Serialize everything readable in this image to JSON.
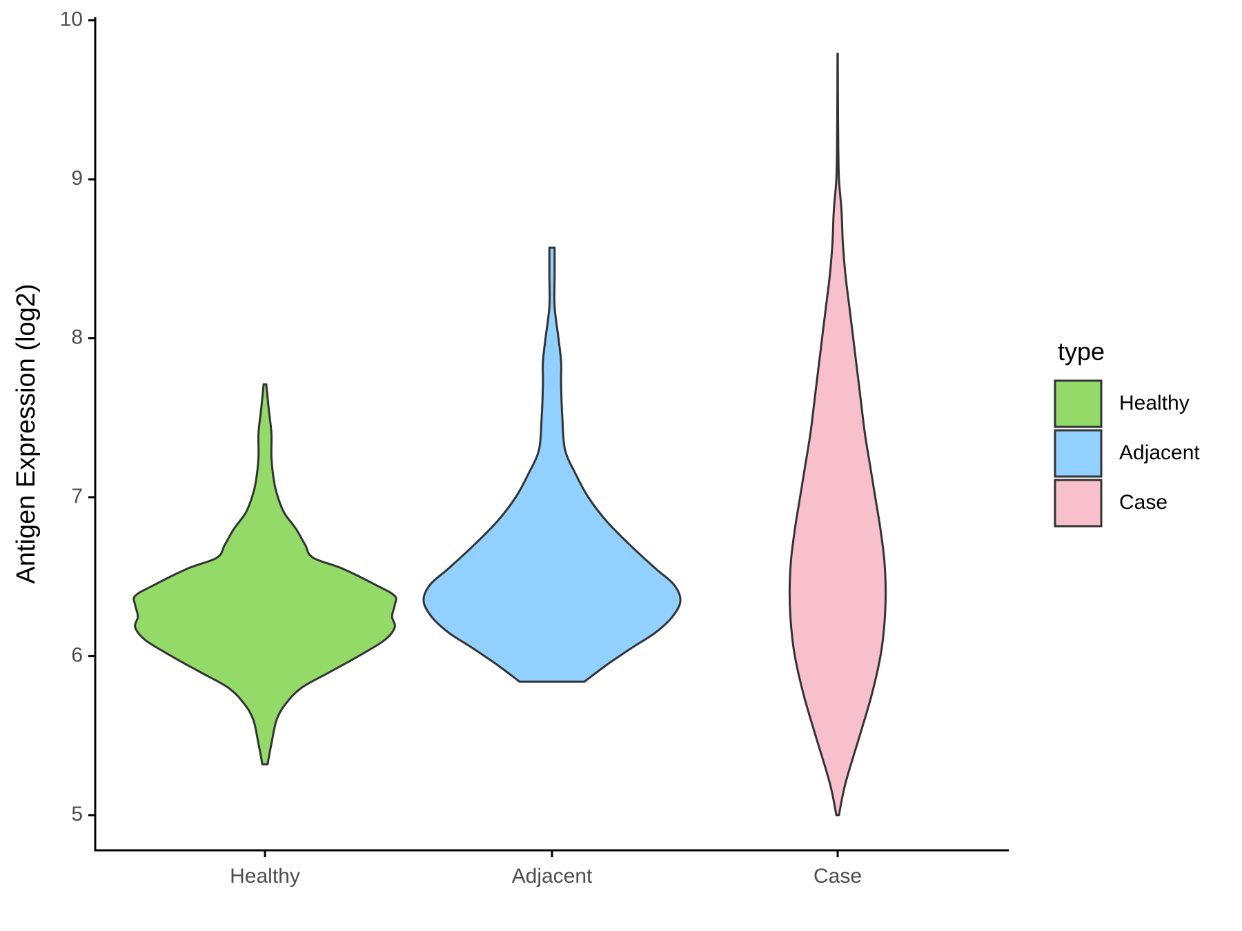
{
  "chart_data": {
    "type": "violin",
    "categories": [
      "Healthy",
      "Adjacent",
      "Case"
    ],
    "ylabel": "Antigen Expression (log2)",
    "xlabel": "",
    "ylim": [
      4.78,
      10.0
    ],
    "yticks": [
      5,
      6,
      7,
      8,
      9,
      10
    ],
    "grid": false,
    "legend": {
      "title": "type",
      "position": "right",
      "entries": [
        "Healthy",
        "Adjacent",
        "Case"
      ]
    },
    "series": [
      {
        "name": "Healthy",
        "color": "#93DA69",
        "min": 5.32,
        "max": 7.71,
        "density": [
          [
            5.32,
            0.02
          ],
          [
            5.45,
            0.05
          ],
          [
            5.6,
            0.09
          ],
          [
            5.7,
            0.16
          ],
          [
            5.8,
            0.28
          ],
          [
            5.9,
            0.5
          ],
          [
            6.0,
            0.72
          ],
          [
            6.1,
            0.92
          ],
          [
            6.18,
            1.0
          ],
          [
            6.25,
            0.98
          ],
          [
            6.32,
            1.0
          ],
          [
            6.38,
            1.0
          ],
          [
            6.45,
            0.85
          ],
          [
            6.55,
            0.6
          ],
          [
            6.62,
            0.37
          ],
          [
            6.7,
            0.31
          ],
          [
            6.8,
            0.24
          ],
          [
            6.9,
            0.15
          ],
          [
            7.0,
            0.1
          ],
          [
            7.1,
            0.07
          ],
          [
            7.25,
            0.05
          ],
          [
            7.4,
            0.05
          ],
          [
            7.55,
            0.03
          ],
          [
            7.71,
            0.01
          ]
        ]
      },
      {
        "name": "Adjacent",
        "color": "#92D1FF",
        "min": 5.84,
        "max": 8.57,
        "density": [
          [
            5.84,
            0.25
          ],
          [
            5.95,
            0.43
          ],
          [
            6.05,
            0.61
          ],
          [
            6.15,
            0.8
          ],
          [
            6.25,
            0.93
          ],
          [
            6.35,
            0.99
          ],
          [
            6.45,
            0.94
          ],
          [
            6.55,
            0.8
          ],
          [
            6.7,
            0.6
          ],
          [
            6.85,
            0.42
          ],
          [
            7.0,
            0.28
          ],
          [
            7.15,
            0.18
          ],
          [
            7.3,
            0.1
          ],
          [
            7.5,
            0.08
          ],
          [
            7.7,
            0.07
          ],
          [
            7.85,
            0.07
          ],
          [
            8.0,
            0.05
          ],
          [
            8.2,
            0.02
          ],
          [
            8.4,
            0.02
          ],
          [
            8.57,
            0.02
          ]
        ]
      },
      {
        "name": "Case",
        "color": "#F7C0CC",
        "min": 5.0,
        "max": 9.79,
        "density": [
          [
            5.0,
            0.01
          ],
          [
            5.2,
            0.06
          ],
          [
            5.5,
            0.17
          ],
          [
            5.75,
            0.26
          ],
          [
            6.0,
            0.33
          ],
          [
            6.2,
            0.36
          ],
          [
            6.4,
            0.37
          ],
          [
            6.6,
            0.36
          ],
          [
            6.8,
            0.33
          ],
          [
            7.0,
            0.29
          ],
          [
            7.2,
            0.25
          ],
          [
            7.4,
            0.21
          ],
          [
            7.6,
            0.18
          ],
          [
            7.8,
            0.15
          ],
          [
            8.0,
            0.12
          ],
          [
            8.2,
            0.09
          ],
          [
            8.4,
            0.06
          ],
          [
            8.6,
            0.04
          ],
          [
            8.8,
            0.03
          ],
          [
            9.0,
            0.01
          ],
          [
            9.2,
            0.005
          ],
          [
            9.5,
            0.002
          ],
          [
            9.79,
            0.001
          ]
        ]
      }
    ]
  }
}
